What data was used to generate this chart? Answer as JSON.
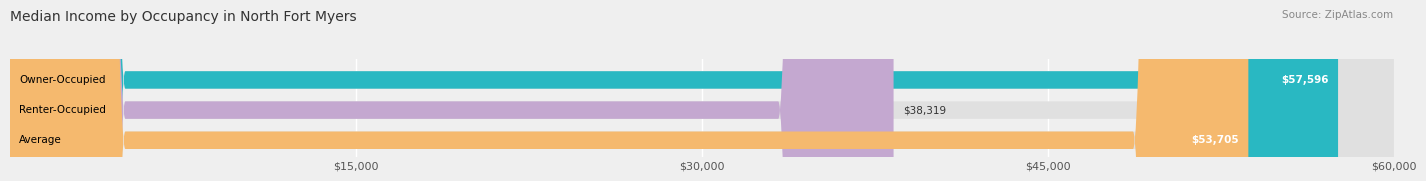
{
  "title": "Median Income by Occupancy in North Fort Myers",
  "source": "Source: ZipAtlas.com",
  "categories": [
    "Owner-Occupied",
    "Renter-Occupied",
    "Average"
  ],
  "values": [
    57596,
    38319,
    53705
  ],
  "bar_colors": [
    "#29b8c2",
    "#c4a8d0",
    "#f5b96e"
  ],
  "value_labels": [
    "$57,596",
    "$38,319",
    "$53,705"
  ],
  "label_inside": [
    true,
    false,
    true
  ],
  "xlim": [
    0,
    60000
  ],
  "xticks": [
    15000,
    30000,
    45000,
    60000
  ],
  "xticklabels": [
    "$15,000",
    "$30,000",
    "$45,000",
    "$60,000"
  ],
  "background_color": "#efefef",
  "bar_bg_color": "#e0e0e0",
  "title_fontsize": 10,
  "source_fontsize": 7.5,
  "label_fontsize": 7.5,
  "tick_fontsize": 8,
  "bar_height": 0.58
}
